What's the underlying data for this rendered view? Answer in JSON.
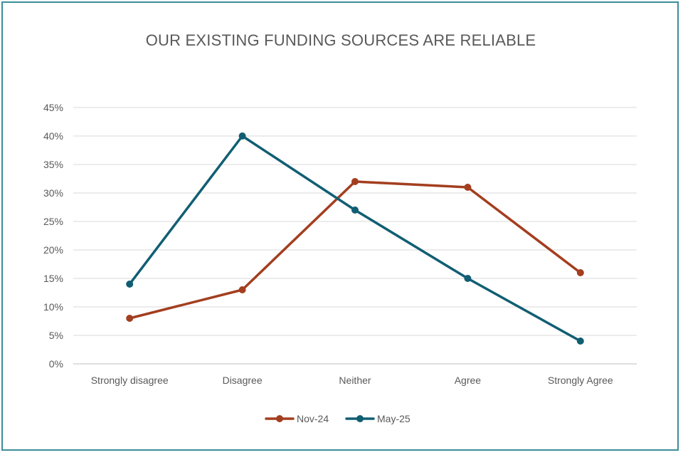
{
  "chart_data": {
    "type": "line",
    "title": "OUR EXISTING FUNDING SOURCES ARE RELIABLE",
    "xlabel": "",
    "ylabel": "",
    "categories": [
      "Strongly disagree",
      "Disagree",
      "Neither",
      "Agree",
      "Strongly Agree"
    ],
    "y_ticks": [
      "0%",
      "5%",
      "10%",
      "15%",
      "20%",
      "25%",
      "30%",
      "35%",
      "40%",
      "45%"
    ],
    "ylim": [
      0,
      45
    ],
    "y_unit": "%",
    "grid": true,
    "legend_position": "bottom",
    "series": [
      {
        "name": "Nov-24",
        "color": "#a33e1f",
        "values": [
          8,
          13,
          32,
          31,
          16
        ]
      },
      {
        "name": "May-25",
        "color": "#115e73",
        "values": [
          14,
          40,
          27,
          15,
          4
        ]
      }
    ]
  }
}
